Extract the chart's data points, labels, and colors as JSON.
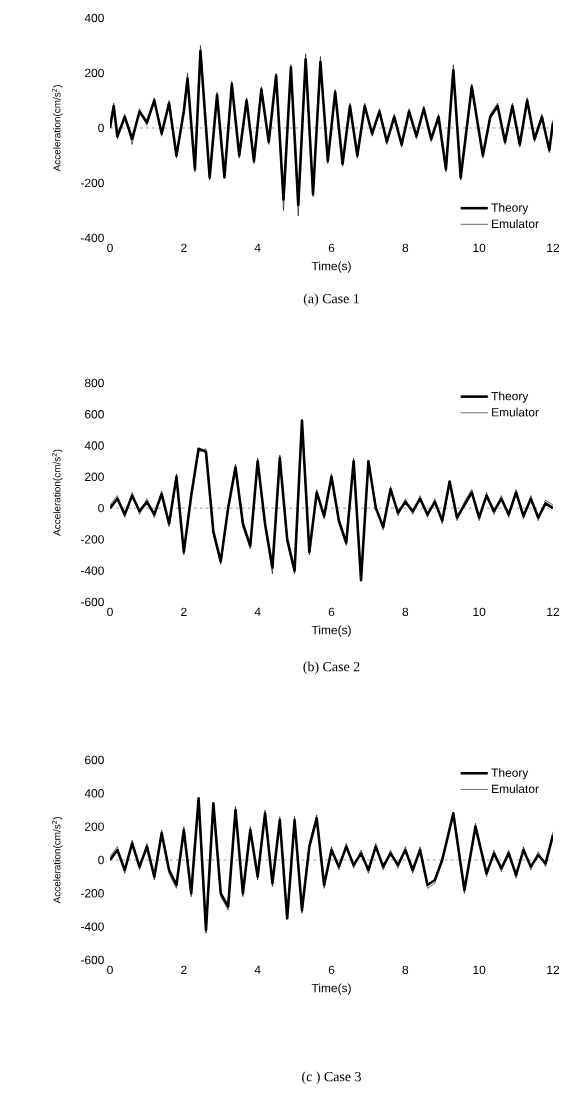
{
  "chart_data": [
    {
      "type": "line",
      "xlabel": "Time(s)",
      "ylabel": "Acceleration(cm/s$^{2}$)",
      "annotations": [
        "(a) Case 1"
      ],
      "xlim": [
        0,
        12
      ],
      "xticks": [
        0,
        2,
        4,
        6,
        8,
        10,
        12
      ],
      "ylim": [
        -400,
        400
      ],
      "yticks": [
        -400,
        -200,
        0,
        200,
        400
      ],
      "legend": "bottom right",
      "grid": false,
      "ref_lines": [
        {
          "axis": "y",
          "value": 0,
          "line_style": "dashed"
        }
      ],
      "x": [
        0,
        0.1,
        0.2,
        0.4,
        0.6,
        0.8,
        1.0,
        1.2,
        1.4,
        1.6,
        1.8,
        2.0,
        2.1,
        2.3,
        2.45,
        2.7,
        2.9,
        3.1,
        3.3,
        3.5,
        3.7,
        3.9,
        4.1,
        4.3,
        4.5,
        4.7,
        4.9,
        5.1,
        5.3,
        5.5,
        5.7,
        5.9,
        6.1,
        6.3,
        6.5,
        6.7,
        6.9,
        7.1,
        7.3,
        7.5,
        7.7,
        7.9,
        8.1,
        8.3,
        8.5,
        8.7,
        8.9,
        9.1,
        9.3,
        9.5,
        9.8,
        10.1,
        10.3,
        10.5,
        10.7,
        10.9,
        11.1,
        11.3,
        11.5,
        11.7,
        11.9,
        12
      ],
      "series": [
        {
          "name": "Theory",
          "color": "#000000",
          "values": [
            0,
            80,
            -30,
            40,
            -40,
            60,
            20,
            100,
            -20,
            90,
            -100,
            60,
            180,
            -150,
            280,
            -180,
            120,
            -180,
            160,
            -100,
            100,
            -120,
            140,
            -50,
            190,
            -260,
            220,
            -280,
            250,
            -240,
            240,
            -120,
            130,
            -130,
            80,
            -100,
            80,
            -20,
            60,
            -50,
            40,
            -60,
            60,
            -30,
            70,
            -40,
            40,
            -150,
            210,
            -180,
            150,
            -100,
            40,
            80,
            -50,
            80,
            -60,
            100,
            -40,
            40,
            -80,
            20
          ]
        },
        {
          "name": "Emulator",
          "color": "#000000",
          "values": [
            10,
            90,
            -40,
            50,
            -60,
            70,
            10,
            110,
            -30,
            100,
            -110,
            70,
            200,
            -160,
            300,
            -190,
            130,
            -170,
            170,
            -110,
            110,
            -130,
            150,
            -60,
            200,
            -300,
            230,
            -320,
            270,
            -250,
            260,
            -130,
            140,
            -140,
            90,
            -110,
            90,
            -30,
            70,
            -60,
            50,
            -70,
            70,
            -40,
            80,
            -50,
            50,
            -160,
            230,
            -190,
            160,
            -110,
            50,
            90,
            -60,
            90,
            -70,
            110,
            -50,
            50,
            -90,
            30
          ]
        }
      ]
    },
    {
      "type": "line",
      "xlabel": "Time(s)",
      "ylabel": "Acceleration(cm/s$^{2}$)",
      "annotations": [
        "(b) Case 2"
      ],
      "xlim": [
        0,
        12
      ],
      "xticks": [
        0,
        2,
        4,
        6,
        8,
        10,
        12
      ],
      "ylim": [
        -600,
        800
      ],
      "yticks": [
        -600,
        -400,
        -200,
        0,
        200,
        400,
        600,
        800
      ],
      "legend": "top right",
      "grid": false,
      "ref_lines": [
        {
          "axis": "y",
          "value": 0,
          "line_style": "dashed"
        }
      ],
      "x": [
        0,
        0.2,
        0.4,
        0.6,
        0.8,
        1.0,
        1.2,
        1.4,
        1.6,
        1.8,
        2.0,
        2.2,
        2.4,
        2.6,
        2.8,
        3.0,
        3.2,
        3.4,
        3.6,
        3.8,
        4.0,
        4.2,
        4.4,
        4.6,
        4.8,
        5.0,
        5.2,
        5.4,
        5.6,
        5.8,
        6.0,
        6.2,
        6.4,
        6.6,
        6.8,
        7.0,
        7.2,
        7.4,
        7.6,
        7.8,
        8.0,
        8.2,
        8.4,
        8.6,
        8.8,
        9.0,
        9.2,
        9.4,
        9.6,
        9.8,
        10.0,
        10.2,
        10.4,
        10.6,
        10.8,
        11.0,
        11.2,
        11.4,
        11.6,
        11.8,
        12
      ],
      "series": [
        {
          "name": "Theory",
          "color": "#000000",
          "values": [
            0,
            60,
            -40,
            80,
            -20,
            40,
            -40,
            90,
            -100,
            200,
            -280,
            80,
            380,
            360,
            -150,
            -340,
            0,
            260,
            -100,
            -240,
            300,
            -100,
            -380,
            320,
            -200,
            -400,
            560,
            -280,
            100,
            -50,
            200,
            -80,
            -220,
            300,
            -460,
            300,
            0,
            -120,
            120,
            -30,
            40,
            -20,
            60,
            -40,
            40,
            -80,
            170,
            -60,
            20,
            100,
            -60,
            80,
            -20,
            60,
            -40,
            100,
            -50,
            60,
            -60,
            30,
            0
          ]
        },
        {
          "name": "Emulator",
          "color": "#000000",
          "values": [
            20,
            80,
            -60,
            100,
            -40,
            60,
            -60,
            110,
            -120,
            220,
            -300,
            100,
            360,
            380,
            -170,
            -360,
            20,
            280,
            -120,
            -260,
            320,
            -120,
            -420,
            340,
            -220,
            -420,
            540,
            -300,
            120,
            -70,
            220,
            -100,
            -240,
            320,
            -440,
            280,
            20,
            -140,
            140,
            -50,
            60,
            -40,
            80,
            -60,
            60,
            -100,
            150,
            -80,
            40,
            120,
            -80,
            100,
            -40,
            80,
            -60,
            120,
            -70,
            80,
            -80,
            50,
            20
          ]
        }
      ]
    },
    {
      "type": "line",
      "xlabel": "Time(s)",
      "ylabel": "Acceleration(cm/s$^{2}$)",
      "annotations": [
        "(c ) Case 3"
      ],
      "xlim": [
        0,
        12
      ],
      "xticks": [
        0,
        2,
        4,
        6,
        8,
        10,
        12
      ],
      "ylim": [
        -600,
        600
      ],
      "yticks": [
        -600,
        -400,
        -200,
        0,
        200,
        400,
        600
      ],
      "legend": "top right",
      "grid": false,
      "ref_lines": [
        {
          "axis": "y",
          "value": 0,
          "line_style": "dashed"
        }
      ],
      "x": [
        0,
        0.2,
        0.4,
        0.6,
        0.8,
        1.0,
        1.2,
        1.4,
        1.6,
        1.8,
        2.0,
        2.2,
        2.4,
        2.6,
        2.8,
        3.0,
        3.2,
        3.4,
        3.6,
        3.8,
        4.0,
        4.2,
        4.4,
        4.6,
        4.8,
        5.0,
        5.2,
        5.4,
        5.6,
        5.8,
        6.0,
        6.2,
        6.4,
        6.6,
        6.8,
        7.0,
        7.2,
        7.4,
        7.6,
        7.8,
        8.0,
        8.2,
        8.4,
        8.6,
        8.8,
        9.0,
        9.3,
        9.6,
        9.9,
        10.2,
        10.4,
        10.6,
        10.8,
        11.0,
        11.2,
        11.4,
        11.6,
        11.8,
        12
      ],
      "series": [
        {
          "name": "Theory",
          "color": "#000000",
          "values": [
            0,
            60,
            -60,
            100,
            -40,
            80,
            -100,
            160,
            -60,
            -150,
            180,
            -200,
            370,
            -420,
            340,
            -200,
            -280,
            300,
            -200,
            180,
            -100,
            280,
            -140,
            240,
            -350,
            240,
            -300,
            80,
            250,
            -150,
            60,
            -40,
            80,
            -30,
            40,
            -60,
            80,
            -40,
            40,
            -30,
            60,
            -60,
            60,
            -150,
            -120,
            0,
            280,
            -180,
            200,
            -80,
            40,
            -50,
            40,
            -90,
            60,
            -40,
            30,
            -20,
            150
          ]
        },
        {
          "name": "Emulator",
          "color": "#000000",
          "values": [
            20,
            80,
            -80,
            120,
            -60,
            100,
            -120,
            180,
            -80,
            -170,
            200,
            -220,
            350,
            -440,
            320,
            -220,
            -300,
            320,
            -220,
            200,
            -120,
            300,
            -160,
            260,
            -330,
            260,
            -320,
            100,
            270,
            -170,
            80,
            -60,
            100,
            -50,
            60,
            -80,
            100,
            -60,
            60,
            -50,
            80,
            -80,
            80,
            -170,
            -140,
            20,
            260,
            -200,
            220,
            -100,
            60,
            -70,
            60,
            -110,
            80,
            -60,
            50,
            -40,
            170
          ]
        }
      ]
    }
  ]
}
